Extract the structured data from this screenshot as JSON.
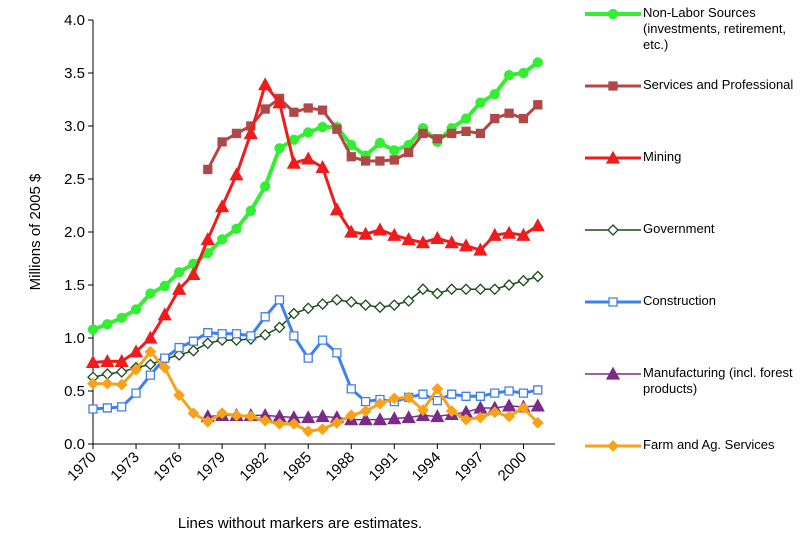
{
  "chart_data": {
    "type": "line",
    "y_label": "Millions of 2005 $",
    "note": "Lines without markers are estimates.",
    "x": [
      1970,
      1971,
      1972,
      1973,
      1974,
      1975,
      1976,
      1977,
      1978,
      1979,
      1980,
      1981,
      1982,
      1983,
      1984,
      1985,
      1986,
      1987,
      1988,
      1989,
      1990,
      1991,
      1992,
      1993,
      1994,
      1995,
      1996,
      1997,
      1998,
      1999,
      2000,
      2001
    ],
    "xlim": [
      1970,
      2002.2
    ],
    "xticks": [
      1970,
      1973,
      1976,
      1979,
      1982,
      1985,
      1988,
      1991,
      1994,
      1997,
      2000
    ],
    "ylim": [
      0,
      4
    ],
    "yticks": [
      {
        "value": 0,
        "label": "0.0"
      },
      {
        "value": 0.5,
        "label": "0.5"
      },
      {
        "value": 1,
        "label": "1.0"
      },
      {
        "value": 1.5,
        "label": "1.5"
      },
      {
        "value": 2,
        "label": "2.0"
      },
      {
        "value": 2.5,
        "label": "2.5"
      },
      {
        "value": 3,
        "label": "3.0"
      },
      {
        "value": 3.5,
        "label": "3.5"
      },
      {
        "value": 4,
        "label": "4.0"
      }
    ],
    "series": [
      {
        "name": "Non-Labor Sources (investments, retirement, etc.)",
        "color": "#33ee33",
        "marker": "circle",
        "values": [
          1.08,
          1.13,
          1.19,
          1.27,
          1.42,
          1.49,
          1.62,
          1.7,
          1.8,
          1.93,
          2.03,
          2.2,
          2.43,
          2.79,
          2.87,
          2.94,
          2.99,
          2.99,
          2.82,
          2.72,
          2.84,
          2.77,
          2.82,
          2.98,
          2.85,
          2.98,
          3.07,
          3.22,
          3.3,
          3.48,
          3.5,
          3.6
        ]
      },
      {
        "name": "Services and Professional",
        "color": "#b04848",
        "marker": "square",
        "values": [
          null,
          null,
          null,
          null,
          null,
          null,
          null,
          null,
          2.59,
          2.85,
          2.93,
          3.0,
          3.16,
          3.26,
          3.13,
          3.17,
          3.15,
          2.97,
          2.71,
          2.67,
          2.67,
          2.68,
          2.75,
          2.93,
          2.88,
          2.93,
          2.95,
          2.93,
          3.07,
          3.12,
          3.07,
          3.2
        ]
      },
      {
        "name": "Mining",
        "color": "#ee1c1c",
        "marker": "triangle",
        "values": [
          0.77,
          0.78,
          0.78,
          0.87,
          1.0,
          1.22,
          1.46,
          1.6,
          1.93,
          2.24,
          2.54,
          2.93,
          3.39,
          3.22,
          2.65,
          2.69,
          2.61,
          2.21,
          2.0,
          1.98,
          2.02,
          1.97,
          1.93,
          1.9,
          1.94,
          1.9,
          1.87,
          1.83,
          1.97,
          1.99,
          1.97,
          2.06
        ]
      },
      {
        "name": "Government",
        "color": "#1a4d1a",
        "marker": "diamond-open",
        "values": [
          0.63,
          0.66,
          0.68,
          0.72,
          0.75,
          0.8,
          0.84,
          0.88,
          0.95,
          0.98,
          0.98,
          0.99,
          1.03,
          1.1,
          1.23,
          1.28,
          1.32,
          1.36,
          1.34,
          1.31,
          1.29,
          1.31,
          1.35,
          1.46,
          1.42,
          1.46,
          1.46,
          1.46,
          1.46,
          1.5,
          1.54,
          1.58
        ]
      },
      {
        "name": "Construction",
        "color": "#3f7fef",
        "marker": "square-open",
        "values": [
          0.33,
          0.34,
          0.35,
          0.48,
          0.65,
          0.81,
          0.91,
          0.97,
          1.05,
          1.04,
          1.04,
          1.02,
          1.2,
          1.36,
          1.02,
          0.81,
          0.98,
          0.86,
          0.52,
          0.4,
          0.42,
          0.4,
          0.44,
          0.47,
          0.41,
          0.47,
          0.45,
          0.45,
          0.48,
          0.5,
          0.48,
          0.51
        ]
      },
      {
        "name": "Manufacturing (incl. forest products)",
        "color": "#7b2a8b",
        "marker": "triangle",
        "values": [
          null,
          null,
          null,
          null,
          null,
          null,
          null,
          null,
          0.26,
          0.27,
          0.27,
          0.27,
          0.27,
          0.26,
          0.25,
          0.25,
          0.26,
          0.25,
          0.23,
          0.23,
          0.23,
          0.24,
          0.25,
          0.27,
          0.26,
          0.28,
          0.3,
          0.34,
          0.34,
          0.36,
          0.35,
          0.36
        ]
      },
      {
        "name": "Farm and Ag. Services",
        "color": "#f7a21b",
        "marker": "diamond",
        "values": [
          0.57,
          0.57,
          0.56,
          0.7,
          0.87,
          0.72,
          0.46,
          0.29,
          0.21,
          0.29,
          0.27,
          0.26,
          0.22,
          0.19,
          0.19,
          0.12,
          0.14,
          0.2,
          0.27,
          0.31,
          0.38,
          0.43,
          0.44,
          0.32,
          0.52,
          0.31,
          0.23,
          0.25,
          0.3,
          0.26,
          0.34,
          0.2
        ]
      }
    ]
  }
}
